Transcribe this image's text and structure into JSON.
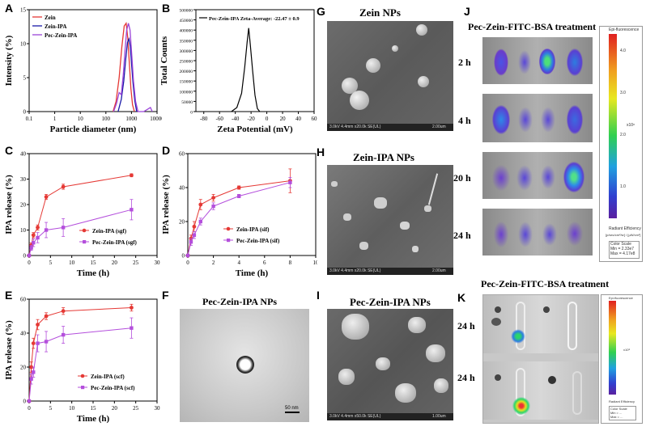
{
  "panel_labels": {
    "A": "A",
    "B": "B",
    "C": "C",
    "D": "D",
    "E": "E",
    "F": "F",
    "G": "G",
    "H": "H",
    "I": "I",
    "J": "J",
    "K": "K"
  },
  "colors": {
    "zein": "#e53935",
    "zein_ipa": "#1a1aa8",
    "pec": "#9b45d9",
    "zein_ipa_release": "#e53935",
    "pec_release": "#b44fdc"
  },
  "chart_data": [
    {
      "id": "A",
      "type": "line",
      "xlabel": "Particle diameter (nm)",
      "ylabel": "Intensity (%)",
      "xscale": "log",
      "xlim": [
        0.1,
        10000
      ],
      "ylim": [
        0,
        15
      ],
      "xticks": [
        "0.1",
        "1",
        "10",
        "100",
        "1000",
        "10000"
      ],
      "yticks": [
        "0",
        "5",
        "10",
        "15"
      ],
      "legend": [
        "Zein",
        "Zein-IPA",
        "Pec-Zein-IPA"
      ],
      "series": [
        {
          "name": "Zein",
          "x": [
            190,
            250,
            330,
            420,
            520,
            620,
            720,
            830,
            950,
            1100,
            1300
          ],
          "y": [
            0,
            1.5,
            5.0,
            9.5,
            12.6,
            13.0,
            10.8,
            7.0,
            3.4,
            1.0,
            0
          ]
        },
        {
          "name": "Zein-IPA",
          "x": [
            300,
            400,
            500,
            600,
            700,
            800,
            900,
            1000,
            1150,
            1350,
            1600
          ],
          "y": [
            0,
            1.8,
            4.5,
            7.8,
            10.2,
            10.7,
            9.6,
            7.2,
            4.2,
            1.6,
            0
          ]
        },
        {
          "name": "Pec-Zein-IPA",
          "x": [
            200,
            260,
            330,
            400,
            480,
            560,
            650,
            760,
            880,
            1020,
            1200,
            1450,
            1800,
            3000,
            4500,
            5500,
            6500
          ],
          "y": [
            0,
            1.2,
            2.8,
            2.5,
            5.5,
            9.0,
            12.0,
            13.0,
            12.0,
            8.5,
            4.5,
            1.5,
            0,
            0,
            0.4,
            0.6,
            0
          ]
        }
      ]
    },
    {
      "id": "B",
      "type": "line",
      "xlabel": "Zeta Potential (mV)",
      "ylabel": "Total Counts",
      "xlim": [
        -90,
        60
      ],
      "ylim": [
        0,
        500000
      ],
      "xticks": [
        "-80",
        "-60",
        "-40",
        "-20",
        "0",
        "20",
        "40",
        "60"
      ],
      "yticks": [
        "0",
        "50000",
        "100000",
        "150000",
        "200000",
        "250000",
        "300000",
        "350000",
        "400000",
        "450000",
        "500000"
      ],
      "legend": [
        "Pec-Zein-IPA Zeta-Average: -22.47 ± 0.9"
      ],
      "series": [
        {
          "name": "Pec-Zein-IPA Zeta-Average: -22.47 ± 0.9",
          "x": [
            -45,
            -38,
            -32,
            -28,
            -25,
            -23,
            -21,
            -18,
            -15,
            -12,
            -9
          ],
          "y": [
            0,
            20000,
            90000,
            220000,
            340000,
            410000,
            330000,
            200000,
            80000,
            15000,
            0
          ]
        }
      ]
    },
    {
      "id": "C",
      "type": "line",
      "xlabel": "Time (h)",
      "ylabel": "IPA release (%)",
      "xlim": [
        0,
        30
      ],
      "ylim": [
        0,
        40
      ],
      "xticks": [
        "0",
        "5",
        "10",
        "15",
        "20",
        "25",
        "30"
      ],
      "yticks": [
        "0",
        "10",
        "20",
        "30",
        "40"
      ],
      "legend": [
        "Zein-IPA (sgf)",
        "Pec-Zein-IPA (sgf)"
      ],
      "series": [
        {
          "name": "Zein-IPA (sgf)",
          "x": [
            0,
            0.5,
            1,
            2,
            4,
            8,
            24
          ],
          "y": [
            0,
            4,
            8,
            11,
            23,
            27,
            31.5
          ],
          "err": [
            0,
            1,
            1,
            1,
            1,
            1,
            0.6
          ]
        },
        {
          "name": "Pec-Zein-IPA (sgf)",
          "x": [
            0,
            0.5,
            1,
            2,
            4,
            8,
            24
          ],
          "y": [
            0,
            3,
            5,
            7,
            10,
            11,
            18
          ],
          "err": [
            0,
            1,
            1.5,
            2,
            3,
            3.5,
            4
          ]
        }
      ]
    },
    {
      "id": "D",
      "type": "line",
      "xlabel": "Time (h)",
      "ylabel": "IPA release (%)",
      "xlim": [
        0,
        10
      ],
      "ylim": [
        0,
        60
      ],
      "xticks": [
        "0",
        "2",
        "4",
        "6",
        "8",
        "10"
      ],
      "yticks": [
        "0",
        "20",
        "40",
        "60"
      ],
      "legend": [
        "Zein-IPA (sif)",
        "Pec-Zein-IPA (sif)"
      ],
      "series": [
        {
          "name": "Zein-IPA (sif)",
          "x": [
            0,
            0.25,
            0.5,
            1,
            2,
            4,
            8
          ],
          "y": [
            0,
            10,
            17,
            30,
            34,
            40,
            44
          ],
          "err": [
            0,
            2,
            3,
            3,
            2,
            1,
            7
          ]
        },
        {
          "name": "Pec-Zein-IPA (sif)",
          "x": [
            0,
            0.25,
            0.5,
            1,
            2,
            4,
            8
          ],
          "y": [
            0,
            8,
            12,
            20,
            29,
            35,
            43
          ],
          "err": [
            0,
            2,
            2,
            2,
            2,
            1,
            3
          ]
        }
      ]
    },
    {
      "id": "E",
      "type": "line",
      "xlabel": "Time (h)",
      "ylabel": "IPA release (%)",
      "xlim": [
        0,
        30
      ],
      "ylim": [
        0,
        60
      ],
      "xticks": [
        "0",
        "5",
        "10",
        "15",
        "20",
        "25",
        "30"
      ],
      "yticks": [
        "0",
        "20",
        "40",
        "60"
      ],
      "legend": [
        "Zein-IPA (scf)",
        "Pec-Zein-IPA (scf)"
      ],
      "series": [
        {
          "name": "Zein-IPA (scf)",
          "x": [
            0,
            0.5,
            1,
            2,
            4,
            8,
            24
          ],
          "y": [
            0,
            20,
            34,
            45,
            50,
            53,
            55
          ],
          "err": [
            0,
            3,
            3,
            3,
            2,
            2,
            2
          ]
        },
        {
          "name": "Pec-Zein-IPA (scf)",
          "x": [
            0,
            0.5,
            1,
            2,
            4,
            8,
            24
          ],
          "y": [
            0,
            13,
            17,
            34,
            35,
            39,
            43
          ],
          "err": [
            0,
            3,
            3,
            5,
            6,
            5,
            6
          ]
        }
      ]
    }
  ],
  "images": {
    "F": {
      "title": "Pec-Zein-IPA NPs",
      "scale": "50 nm"
    },
    "G": {
      "title": "Zein NPs",
      "info": "3.0kV 4.4mm x20.0k SE(UL)",
      "scale": "2.00um"
    },
    "H": {
      "title": "Zein-IPA NPs",
      "info": "3.0kV 4.4mm x20.0k SE(UL)",
      "scale": "2.00um"
    },
    "I": {
      "title": "Pec-Zein-IPA NPs",
      "info": "3.0kV 4.4mm x50.0k SE(UL)",
      "scale": "1.00um"
    }
  },
  "imaging_J": {
    "title": "Pec-Zein-FITC-BSA treatment",
    "rows": [
      "2 h",
      "4 h",
      "20 h",
      "24 h"
    ],
    "colorbar": {
      "header": "Epi-fluorescence",
      "ticks": [
        "4.0",
        "3.0",
        "2.0",
        "1.0"
      ],
      "multiplier": "x10⁸",
      "footer": "Radiant Efficiency",
      "unit": "[p/sec/cm²/sr] / [µW/cm²]",
      "scale_box": [
        "Color Scale",
        "Min = 2.33e7",
        "Max = 4.17e8"
      ]
    }
  },
  "imaging_K": {
    "title": "Pec-Zein-FITC-BSA treatment",
    "rows": [
      "24 h",
      "24 h"
    ],
    "colorbar": {
      "header": "Epi-fluorescence",
      "multiplier": "x10⁸",
      "footer": "Radiant Efficiency",
      "scale_box": [
        "Color Scale",
        "Min = ...",
        "Max = ..."
      ]
    }
  }
}
